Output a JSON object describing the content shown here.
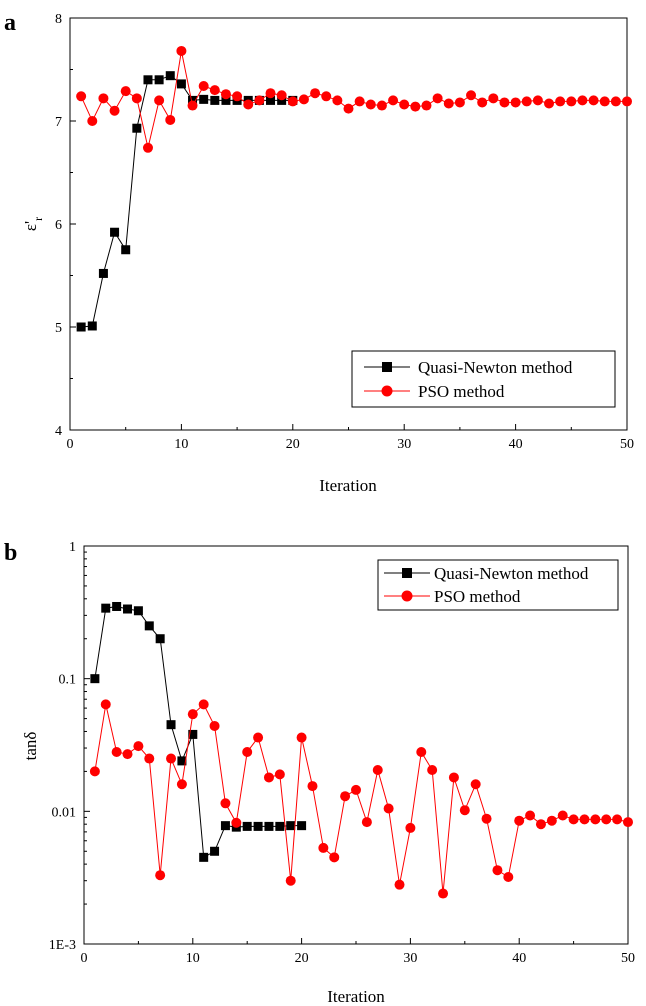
{
  "chart_data": [
    {
      "type": "line",
      "panel_label": "a",
      "xlabel": "Iteration",
      "ylabel": "ε'",
      "ylabel_sub": "r",
      "xlim": [
        0,
        50
      ],
      "ylim": [
        4,
        8
      ],
      "xticks": [
        0,
        10,
        20,
        30,
        40,
        50
      ],
      "yticks": [
        4,
        5,
        6,
        7,
        8
      ],
      "ytick_labels": [
        "4",
        "5",
        "6",
        "7",
        "8"
      ],
      "grid": false,
      "legend_position": "bottom-right",
      "series": [
        {
          "name": "Quasi-Newton method",
          "color": "#000000",
          "marker": "square",
          "x": [
            1,
            2,
            3,
            4,
            5,
            6,
            7,
            8,
            9,
            10,
            11,
            12,
            13,
            14,
            15,
            16,
            17,
            18,
            19,
            20
          ],
          "y": [
            5.0,
            5.01,
            5.52,
            5.92,
            5.75,
            6.93,
            7.4,
            7.4,
            7.44,
            7.36,
            7.2,
            7.21,
            7.2,
            7.2,
            7.2,
            7.2,
            7.2,
            7.2,
            7.2,
            7.2
          ]
        },
        {
          "name": "PSO method",
          "color": "#ff0000",
          "marker": "circle",
          "x": [
            1,
            2,
            3,
            4,
            5,
            6,
            7,
            8,
            9,
            10,
            11,
            12,
            13,
            14,
            15,
            16,
            17,
            18,
            19,
            20,
            21,
            22,
            23,
            24,
            25,
            26,
            27,
            28,
            29,
            30,
            31,
            32,
            33,
            34,
            35,
            36,
            37,
            38,
            39,
            40,
            41,
            42,
            43,
            44,
            45,
            46,
            47,
            48,
            49,
            50
          ],
          "y": [
            7.24,
            7.0,
            7.22,
            7.1,
            7.29,
            7.22,
            6.74,
            7.2,
            7.01,
            7.68,
            7.15,
            7.34,
            7.3,
            7.26,
            7.24,
            7.16,
            7.2,
            7.27,
            7.25,
            7.19,
            7.21,
            7.27,
            7.24,
            7.2,
            7.12,
            7.19,
            7.16,
            7.15,
            7.2,
            7.16,
            7.14,
            7.15,
            7.22,
            7.17,
            7.18,
            7.25,
            7.18,
            7.22,
            7.18,
            7.18,
            7.19,
            7.2,
            7.17,
            7.19,
            7.19,
            7.2,
            7.2,
            7.19,
            7.19,
            7.19
          ]
        }
      ]
    },
    {
      "type": "line",
      "panel_label": "b",
      "xlabel": "Iteration",
      "ylabel": "tanδ",
      "xlim": [
        0,
        50
      ],
      "ylim": [
        0.001,
        1
      ],
      "yscale": "log",
      "xticks": [
        0,
        10,
        20,
        30,
        40,
        50
      ],
      "yticks": [
        0.001,
        0.01,
        0.1,
        1
      ],
      "ytick_labels": [
        "1E-3",
        "0.01",
        "0.1",
        "1"
      ],
      "grid": false,
      "legend_position": "top-right",
      "series": [
        {
          "name": "Quasi-Newton method",
          "color": "#000000",
          "marker": "square",
          "x": [
            1,
            2,
            3,
            4,
            5,
            6,
            7,
            8,
            9,
            10,
            11,
            12,
            13,
            14,
            15,
            16,
            17,
            18,
            19,
            20
          ],
          "y": [
            0.1,
            0.34,
            0.35,
            0.335,
            0.325,
            0.25,
            0.2,
            0.045,
            0.024,
            0.038,
            0.0045,
            0.005,
            0.0078,
            0.0076,
            0.0077,
            0.0077,
            0.0077,
            0.0077,
            0.0078,
            0.0078
          ]
        },
        {
          "name": "PSO method",
          "color": "#ff0000",
          "marker": "circle",
          "x": [
            1,
            2,
            3,
            4,
            5,
            6,
            7,
            8,
            9,
            10,
            11,
            12,
            13,
            14,
            15,
            16,
            17,
            18,
            19,
            20,
            21,
            22,
            23,
            24,
            25,
            26,
            27,
            28,
            29,
            30,
            31,
            32,
            33,
            34,
            35,
            36,
            37,
            38,
            39,
            40,
            41,
            42,
            43,
            44,
            45,
            46,
            47,
            48,
            49,
            50
          ],
          "y": [
            0.02,
            0.064,
            0.028,
            0.027,
            0.031,
            0.025,
            0.0033,
            0.025,
            0.016,
            0.054,
            0.064,
            0.044,
            0.0115,
            0.0082,
            0.028,
            0.036,
            0.018,
            0.019,
            0.003,
            0.036,
            0.0155,
            0.0053,
            0.0045,
            0.013,
            0.0145,
            0.0083,
            0.0205,
            0.0105,
            0.0028,
            0.0075,
            0.028,
            0.0205,
            0.0024,
            0.018,
            0.0102,
            0.016,
            0.0088,
            0.0036,
            0.0032,
            0.0085,
            0.0093,
            0.008,
            0.0085,
            0.0093,
            0.0087,
            0.0087,
            0.0087,
            0.0087,
            0.0087,
            0.0083
          ]
        }
      ]
    }
  ]
}
